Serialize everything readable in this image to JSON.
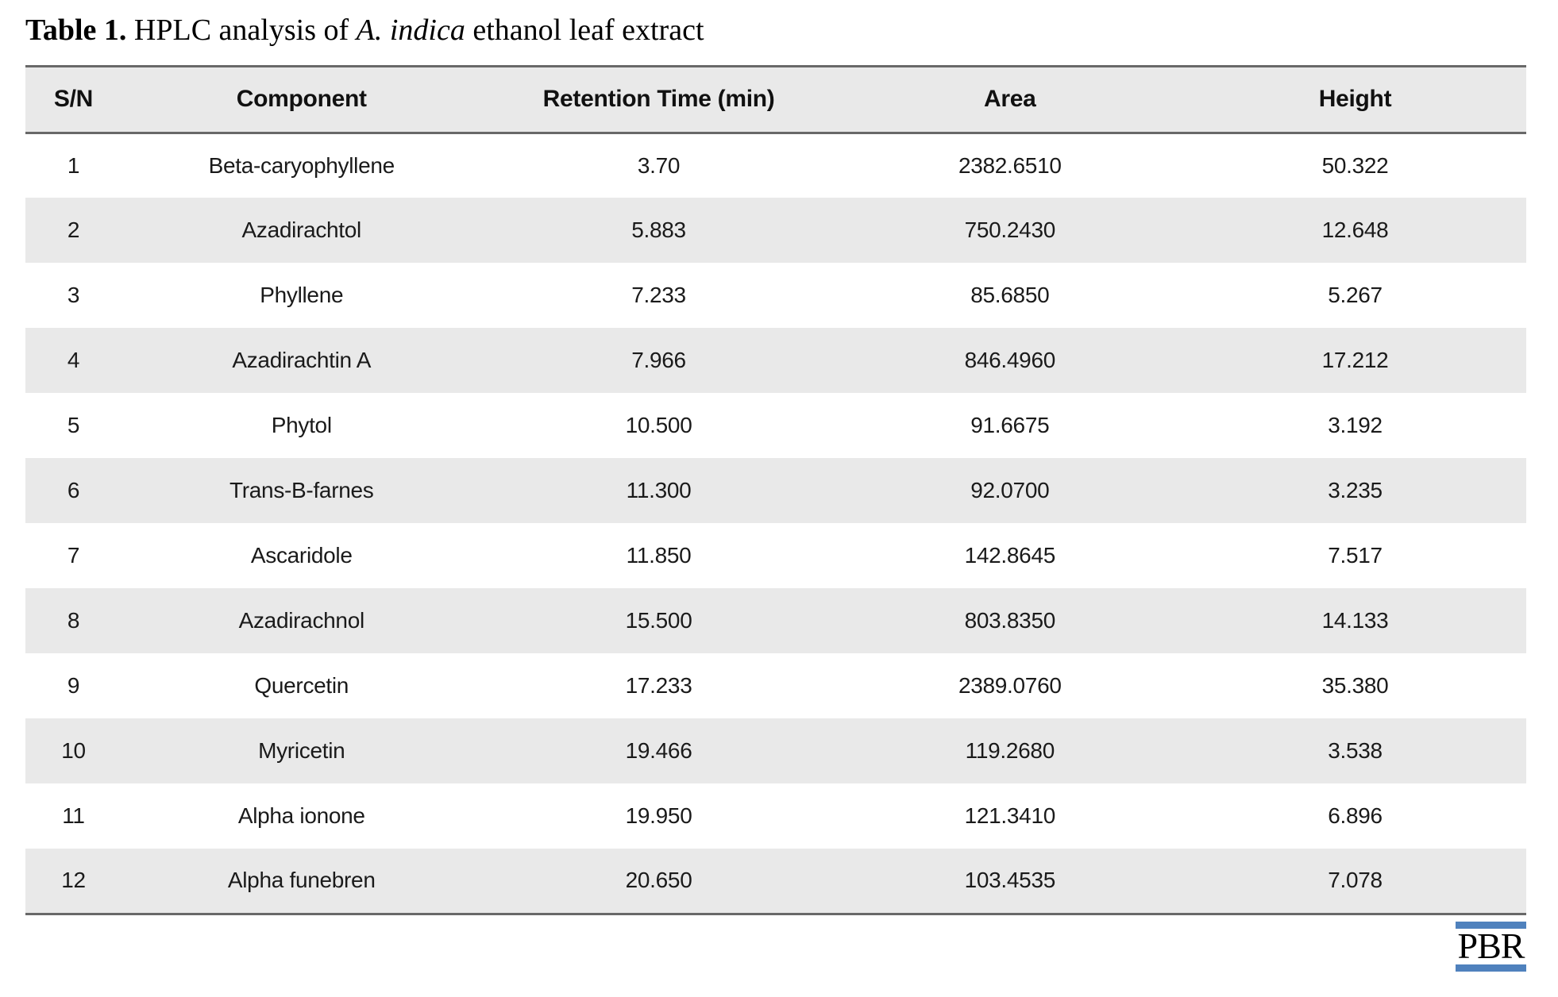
{
  "caption": {
    "label": "Table 1.",
    "before_species": " HPLC analysis of ",
    "species": "A. indica",
    "after_species": " ethanol leaf extract"
  },
  "table": {
    "columns": [
      "S/N",
      "Component",
      "Retention Time (min)",
      "Area",
      "Height"
    ],
    "rows": [
      [
        "1",
        "Beta-caryophyllene",
        "3.70",
        "2382.6510",
        "50.322"
      ],
      [
        "2",
        "Azadirachtol",
        "5.883",
        "750.2430",
        "12.648"
      ],
      [
        "3",
        "Phyllene",
        "7.233",
        "85.6850",
        "5.267"
      ],
      [
        "4",
        "Azadirachtin A",
        "7.966",
        "846.4960",
        "17.212"
      ],
      [
        "5",
        "Phytol",
        "10.500",
        "91.6675",
        "3.192"
      ],
      [
        "6",
        "Trans-B-farnes",
        "11.300",
        "92.0700",
        "3.235"
      ],
      [
        "7",
        "Ascaridole",
        "11.850",
        "142.8645",
        "7.517"
      ],
      [
        "8",
        "Azadirachnol",
        "15.500",
        "803.8350",
        "14.133"
      ],
      [
        "9",
        "Quercetin",
        "17.233",
        "2389.0760",
        "35.380"
      ],
      [
        "10",
        "Myricetin",
        "19.466",
        "119.2680",
        "3.538"
      ],
      [
        "11",
        "Alpha ionone",
        "19.950",
        "121.3410",
        "6.896"
      ],
      [
        "12",
        "Alpha funebren",
        "20.650",
        "103.4535",
        "7.078"
      ]
    ]
  },
  "logo": {
    "text": "PBR"
  },
  "colors": {
    "logo_blue": "#4f81bd",
    "header_bg": "#e9e9e9",
    "stripe_bg": "#e9e9e9",
    "border_gray": "#686868",
    "text": "#111111"
  }
}
